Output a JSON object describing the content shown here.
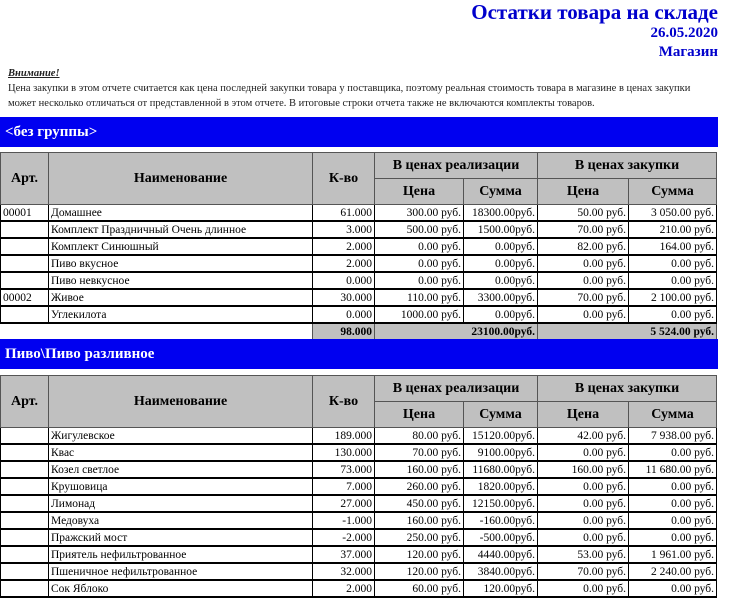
{
  "header": {
    "title": "Остатки товара на складе",
    "date": "26.05.2020",
    "store": "Магазин"
  },
  "note": {
    "heading": "Внимание!",
    "text": "Цена закупки в этом отчете считается как цена последней закупки товара у поставщика, поэтому реальная стоимость товара в магазине в ценах закупки может несколько отличаться от представленной в этом отчете. В итоговые строки отчета также не включаются комплекты товаров."
  },
  "columns": {
    "art": "Арт.",
    "name": "Наименование",
    "qty": "К-во",
    "sale": "В ценах реализации",
    "purchase": "В ценах закупки",
    "price": "Цена",
    "sum": "Сумма"
  },
  "groups": [
    {
      "name": "<без группы>",
      "rows": [
        [
          "00001",
          "Домашнее",
          "61.000",
          "300.00 руб.",
          "18300.00руб.",
          "50.00 руб.",
          "3 050.00 руб."
        ],
        [
          "",
          "Комплект Праздничный Очень длинное",
          "3.000",
          "500.00 руб.",
          "1500.00руб.",
          "70.00 руб.",
          "210.00 руб."
        ],
        [
          "",
          "Комплект Синюшный",
          "2.000",
          "0.00 руб.",
          "0.00руб.",
          "82.00 руб.",
          "164.00 руб."
        ],
        [
          "",
          "Пиво вкусное",
          "2.000",
          "0.00 руб.",
          "0.00руб.",
          "0.00 руб.",
          "0.00 руб."
        ],
        [
          "",
          "Пиво невкусное",
          "0.000",
          "0.00 руб.",
          "0.00руб.",
          "0.00 руб.",
          "0.00 руб."
        ],
        [
          "00002",
          "Живое",
          "30.000",
          "110.00 руб.",
          "3300.00руб.",
          "70.00 руб.",
          "2 100.00 руб."
        ],
        [
          "",
          "Углекилота",
          "0.000",
          "1000.00 руб.",
          "0.00руб.",
          "0.00 руб.",
          "0.00 руб."
        ]
      ],
      "total": {
        "qty": "98.000",
        "sale": "23100.00руб.",
        "purchase": "5 524.00 руб."
      }
    },
    {
      "name": "Пиво\\Пиво разливное",
      "rows": [
        [
          "",
          "Жигулевское",
          "189.000",
          "80.00 руб.",
          "15120.00руб.",
          "42.00 руб.",
          "7 938.00 руб."
        ],
        [
          "",
          "Квас",
          "130.000",
          "70.00 руб.",
          "9100.00руб.",
          "0.00 руб.",
          "0.00 руб."
        ],
        [
          "",
          "Козел светлое",
          "73.000",
          "160.00 руб.",
          "11680.00руб.",
          "160.00 руб.",
          "11 680.00 руб."
        ],
        [
          "",
          "Крушовица",
          "7.000",
          "260.00 руб.",
          "1820.00руб.",
          "0.00 руб.",
          "0.00 руб."
        ],
        [
          "",
          "Лимонад",
          "27.000",
          "450.00 руб.",
          "12150.00руб.",
          "0.00 руб.",
          "0.00 руб."
        ],
        [
          "",
          "Медовуха",
          "-1.000",
          "160.00 руб.",
          "-160.00руб.",
          "0.00 руб.",
          "0.00 руб."
        ],
        [
          "",
          "Пражский мост",
          "-2.000",
          "250.00 руб.",
          "-500.00руб.",
          "0.00 руб.",
          "0.00 руб."
        ],
        [
          "",
          "Приятель нефильтрованное",
          "37.000",
          "120.00 руб.",
          "4440.00руб.",
          "53.00 руб.",
          "1 961.00 руб."
        ],
        [
          "",
          "Пшеничное нефильтрованное",
          "32.000",
          "120.00 руб.",
          "3840.00руб.",
          "70.00 руб.",
          "2 240.00 руб."
        ],
        [
          "",
          "Сок Яблоко",
          "2.000",
          "60.00 руб.",
          "120.00руб.",
          "0.00 руб.",
          "0.00 руб."
        ]
      ]
    }
  ]
}
